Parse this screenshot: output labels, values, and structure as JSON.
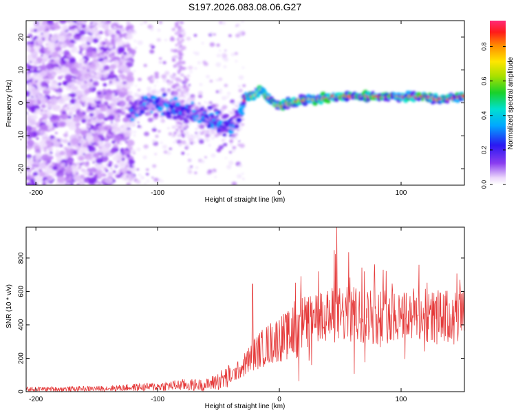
{
  "title": "S197.2026.083.08.06.G27",
  "chart_data": [
    {
      "type": "heatmap",
      "xlabel": "Height of straight line (km)",
      "ylabel": "Frequency (Hz)",
      "xlim": [
        -208,
        152
      ],
      "ylim": [
        -25,
        25
      ],
      "xticks": [
        -200,
        -100,
        0,
        100
      ],
      "yticks": [
        20,
        10,
        0,
        -10,
        -20
      ],
      "colorbar": {
        "label": "Normalized spectral amplitude",
        "range": [
          0,
          0.95
        ],
        "ticks": [
          "0.0",
          "0.2",
          "0.4",
          "0.6",
          "0.8"
        ],
        "tick_values": [
          0.0,
          0.2,
          0.4,
          0.6,
          0.8
        ]
      },
      "ridge": {
        "x": [
          -123,
          -115,
          -105,
          -95,
          -85,
          -75,
          -65,
          -55,
          -45,
          -38,
          -32,
          -28,
          -22,
          -15,
          -10,
          -5,
          0,
          10,
          20,
          30,
          45,
          60,
          80,
          100,
          120,
          130,
          150
        ],
        "freq": [
          -3,
          -1,
          0,
          -1,
          -2,
          -3,
          -4,
          -5,
          -6,
          -7,
          -3,
          2,
          2,
          4,
          2,
          0,
          -1,
          0,
          1,
          1,
          2,
          2,
          2,
          2,
          2,
          1,
          2
        ]
      }
    },
    {
      "type": "line",
      "xlabel": "Height of straight line (km)",
      "ylabel": "SNR (10 * v/v)",
      "xlim": [
        -208,
        152
      ],
      "ylim": [
        0,
        985
      ],
      "xticks": [
        -200,
        -100,
        0,
        100
      ],
      "yticks": [
        0,
        200,
        400,
        600,
        800
      ],
      "series": [
        {
          "name": "SNR",
          "color": "#e53a3a",
          "trend_x": [
            -208,
            -150,
            -100,
            -80,
            -60,
            -40,
            -30,
            -20,
            -10,
            0,
            10,
            20,
            30,
            40,
            50,
            60,
            80,
            100,
            120,
            140,
            152
          ],
          "trend_y": [
            15,
            18,
            30,
            40,
            40,
            90,
            150,
            230,
            280,
            320,
            340,
            410,
            430,
            450,
            460,
            460,
            450,
            470,
            450,
            440,
            460
          ],
          "peaks": [
            {
              "x": -22,
              "y": 645
            },
            {
              "x": 32,
              "y": 720
            },
            {
              "x": 47,
              "y": 985
            },
            {
              "x": 57,
              "y": 835
            },
            {
              "x": 70,
              "y": 720
            }
          ]
        }
      ]
    }
  ]
}
